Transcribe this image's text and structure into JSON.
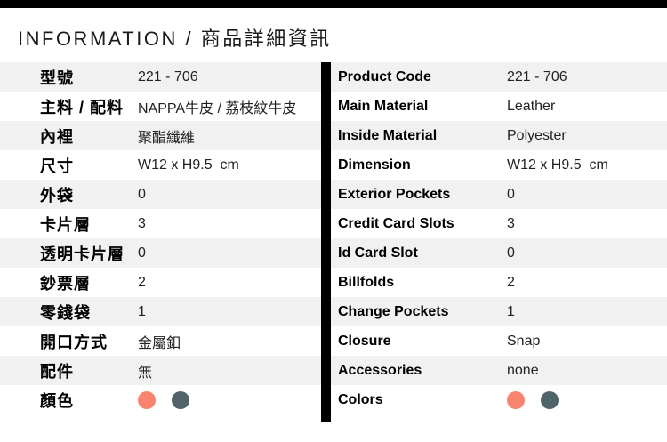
{
  "page": {
    "title": "INFORMATION / 商品詳細資訊"
  },
  "colors": {
    "accent_coral": "#F8836E",
    "accent_slate": "#4F6369",
    "row_alt_bg": "#F1F1F1",
    "bar_black": "#000000"
  },
  "table": {
    "left": {
      "rows": [
        {
          "label": "型號",
          "value": "221 - 706"
        },
        {
          "label": "主料 / 配料",
          "value": "NAPPA牛皮 / 荔枝紋牛皮"
        },
        {
          "label": "內裡",
          "value": "聚酯纖維"
        },
        {
          "label": "尺寸",
          "value": "W12 x H9.5  cm"
        },
        {
          "label": "外袋",
          "value": "0"
        },
        {
          "label": "卡片層",
          "value": "3"
        },
        {
          "label": "透明卡片層",
          "value": "0"
        },
        {
          "label": "鈔票層",
          "value": "2"
        },
        {
          "label": "零錢袋",
          "value": "1"
        },
        {
          "label": "開口方式",
          "value": "金屬釦"
        },
        {
          "label": "配件",
          "value": "無"
        },
        {
          "label": "顏色",
          "value": "",
          "swatches": [
            "#F8836E",
            "#4F6369"
          ]
        }
      ]
    },
    "right": {
      "rows": [
        {
          "label": "Product Code",
          "value": "221 - 706"
        },
        {
          "label": "Main Material",
          "value": "Leather"
        },
        {
          "label": "Inside Material",
          "value": "Polyester"
        },
        {
          "label": "Dimension",
          "value": "W12 x H9.5  cm"
        },
        {
          "label": "Exterior Pockets",
          "value": "0"
        },
        {
          "label": "Credit Card Slots",
          "value": "3"
        },
        {
          "label": "Id Card Slot",
          "value": "0"
        },
        {
          "label": "Billfolds",
          "value": "2"
        },
        {
          "label": "Change Pockets",
          "value": "1"
        },
        {
          "label": "Closure",
          "value": "Snap"
        },
        {
          "label": "Accessories",
          "value": "none"
        },
        {
          "label": "Colors",
          "value": "",
          "swatches": [
            "#F8836E",
            "#4F6369"
          ]
        }
      ]
    }
  }
}
